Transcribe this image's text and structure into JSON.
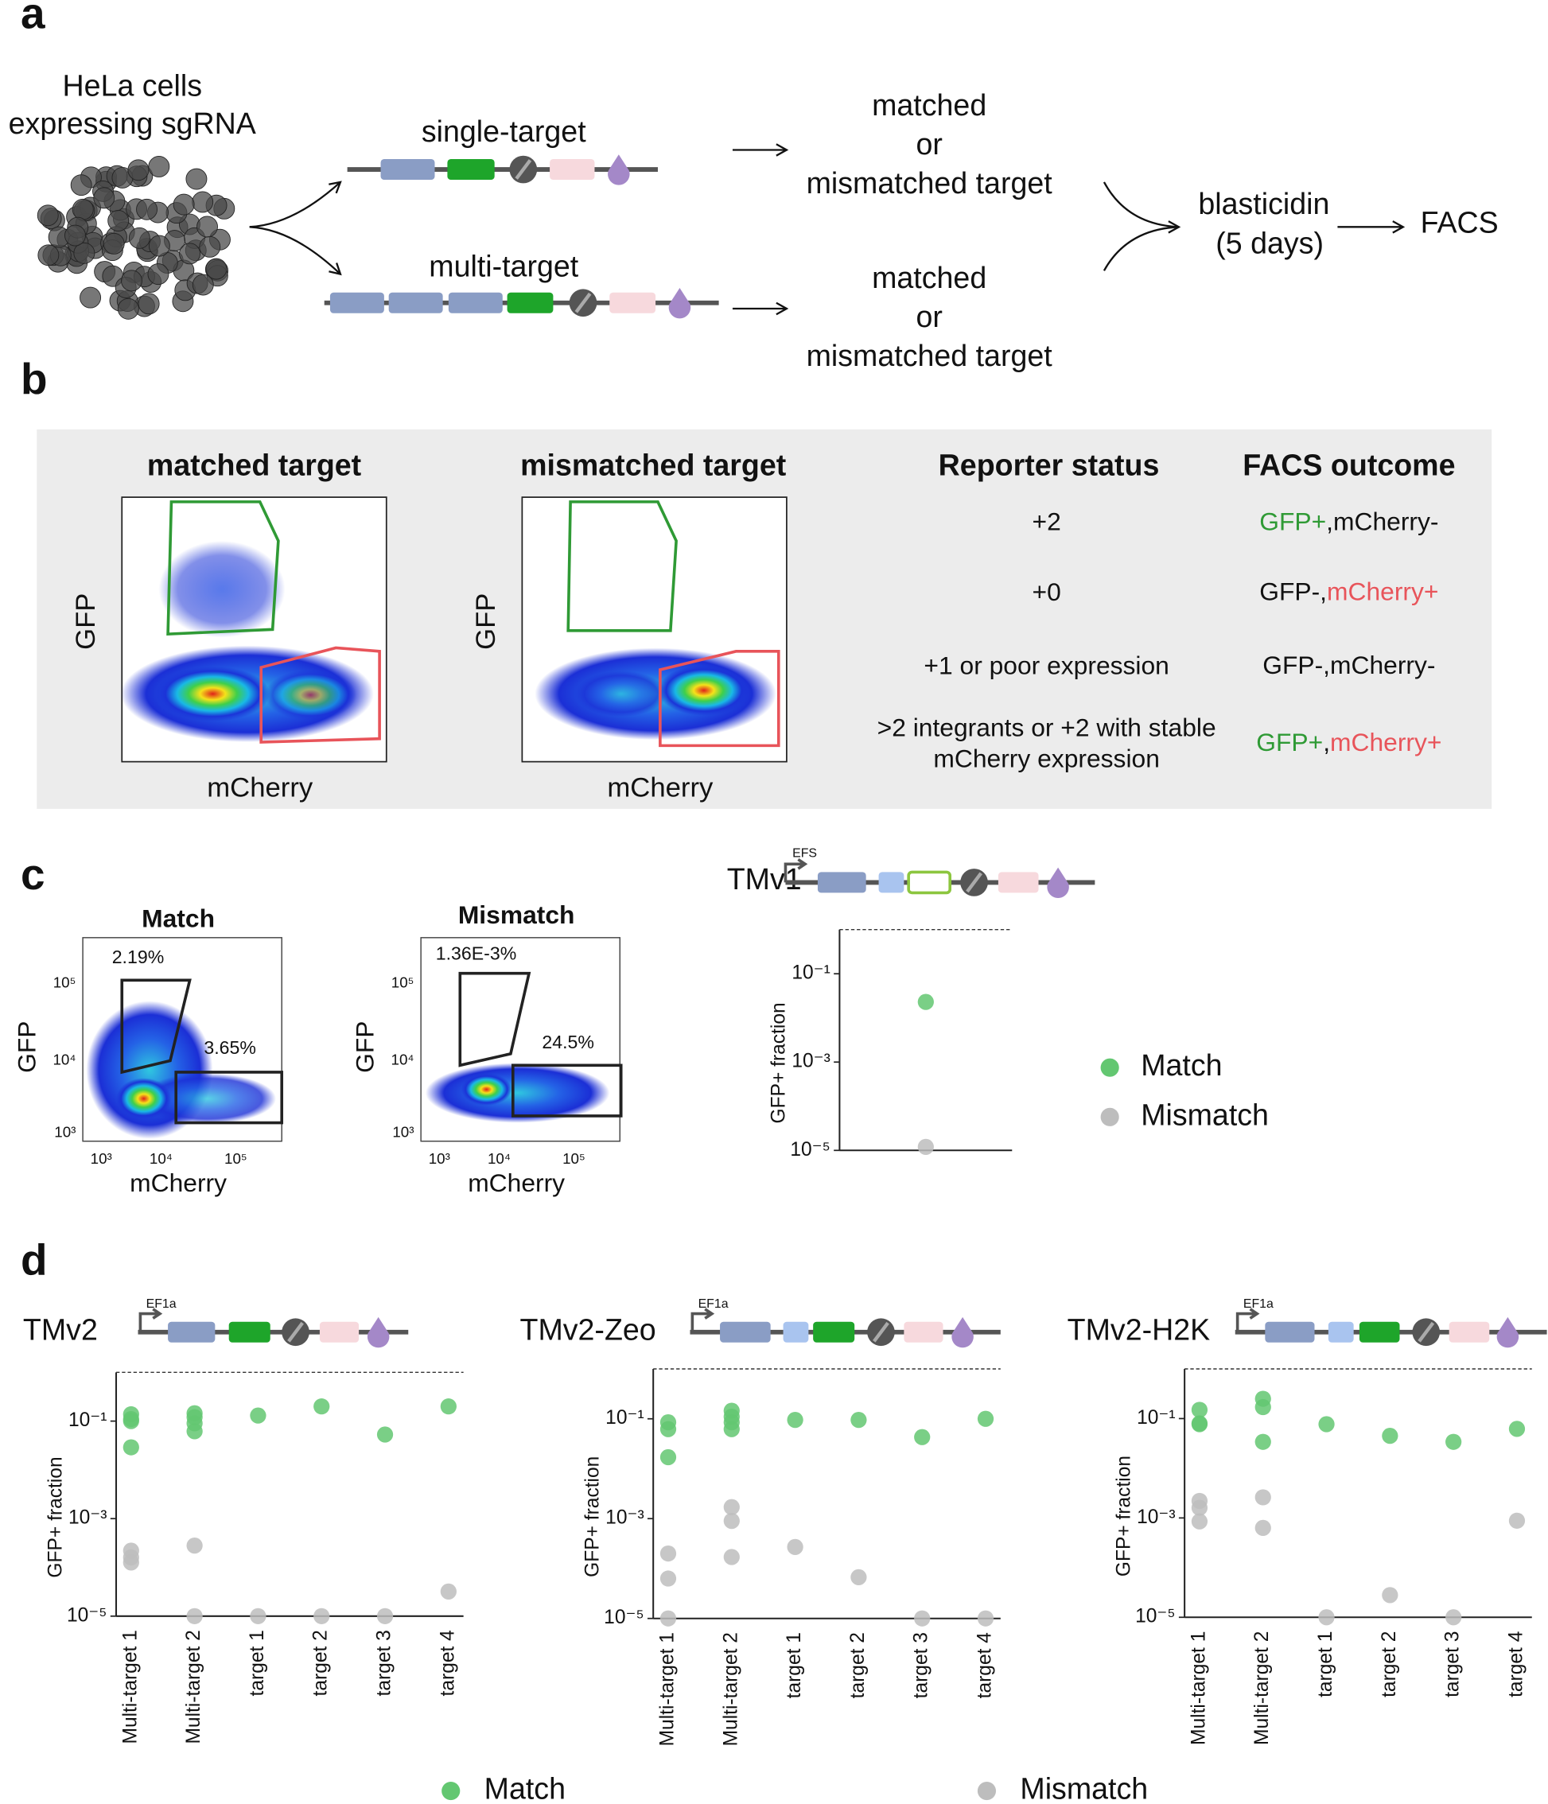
{
  "panel_labels": [
    "a",
    "b",
    "c",
    "d"
  ],
  "panel_a": {
    "cells_label": [
      "HeLa cells",
      "expressing sgRNA"
    ],
    "single": "single-target",
    "multi": "multi-target",
    "outcome": [
      "matched",
      "or",
      "mismatched target"
    ],
    "selection": [
      "blasticidin",
      "(5 days)"
    ],
    "facs": "FACS"
  },
  "panel_b": {
    "plots": [
      {
        "title": "matched target",
        "x_label": "mCherry",
        "y_label": "GFP"
      },
      {
        "title": "mismatched target",
        "x_label": "mCherry",
        "y_label": "GFP"
      }
    ],
    "table": {
      "header": [
        "Reporter status",
        "FACS outcome"
      ],
      "rows": [
        {
          "status": [
            "+2"
          ],
          "outcome": [
            {
              "text": "GFP+",
              "color": "#2f9a35"
            },
            {
              "text": ",mCherry-",
              "color": "#111111"
            }
          ]
        },
        {
          "status": [
            "+0"
          ],
          "outcome": [
            {
              "text": "GFP-,",
              "color": "#111111"
            },
            {
              "text": "mCherry+",
              "color": "#e8545a"
            }
          ]
        },
        {
          "status": [
            "+1 or poor expression"
          ],
          "outcome": [
            {
              "text": "GFP-,mCherry-",
              "color": "#111111"
            }
          ]
        },
        {
          "status": [
            ">2 integrants or +2 with stable",
            "mCherry expression"
          ],
          "outcome": [
            {
              "text": "GFP+",
              "color": "#2f9a35"
            },
            {
              "text": ",",
              "color": "#111111"
            },
            {
              "text": "mCherry+",
              "color": "#e8545a"
            }
          ]
        }
      ]
    }
  },
  "panel_c": {
    "plots": [
      {
        "title": "Match",
        "x_label": "mCherry",
        "y_label": "GFP",
        "gates": [
          "2.19%",
          "3.65%"
        ],
        "ticks": [
          "10³",
          "10⁴",
          "10⁵"
        ]
      },
      {
        "title": "Mismatch",
        "x_label": "mCherry",
        "y_label": "GFP",
        "gates": [
          "1.36E-3%",
          "24.5%"
        ],
        "ticks": [
          "10³",
          "10⁴",
          "10⁵"
        ]
      }
    ],
    "construct": {
      "name": "TMv1",
      "promoter": "EFS"
    }
  },
  "panel_d": {
    "constructs": [
      {
        "name": "TMv2",
        "promoter": "EF1a"
      },
      {
        "name": "TMv2-Zeo",
        "promoter": "EF1a"
      },
      {
        "name": "TMv2-H2K",
        "promoter": "EF1a"
      }
    ]
  },
  "chart_data": [
    {
      "type": "scatter",
      "y_label": "GFP+ fraction",
      "log_y": true,
      "categories": [
        null
      ],
      "ylim": [
        1e-05,
        1
      ],
      "yticks": [
        {
          "value": 1e-05,
          "label": "10⁻⁵"
        },
        {
          "value": 0.001,
          "label": "10⁻³"
        },
        {
          "value": 0.1,
          "label": "10⁻¹"
        }
      ],
      "reference_line": 1,
      "legend": "right",
      "series": [
        {
          "name": "Match",
          "color": "#63c771",
          "x": [
            0
          ],
          "values": [
            0.023
          ]
        },
        {
          "name": "Mismatch",
          "color": "#bdbdbd",
          "x": [
            0
          ],
          "values": [
            1.2e-05
          ]
        }
      ]
    },
    {
      "type": "scatter",
      "y_label": "GFP+ fraction",
      "log_y": true,
      "categories": [
        "Multi-target 1",
        "Multi-target 2",
        "target 1",
        "target 2",
        "target 3",
        "target 4"
      ],
      "ylim": [
        1e-05,
        1
      ],
      "yticks": [
        {
          "value": 1e-05,
          "label": "10⁻⁵"
        },
        {
          "value": 0.001,
          "label": "10⁻³"
        },
        {
          "value": 0.1,
          "label": "10⁻¹"
        }
      ],
      "reference_line": 1,
      "legend": "bottom",
      "series": [
        {
          "name": "Match",
          "color": "#63c771",
          "x": [
            0,
            0,
            0,
            0,
            1,
            1,
            1,
            1,
            2,
            3,
            4,
            5
          ],
          "values": [
            0.138,
            0.11,
            0.1,
            0.029,
            0.145,
            0.12,
            0.09,
            0.062,
            0.13,
            0.2,
            0.053,
            0.2
          ]
        },
        {
          "name": "Mismatch",
          "color": "#bdbdbd",
          "x": [
            0,
            0,
            0,
            1,
            1,
            2,
            3,
            4,
            5
          ],
          "values": [
            0.00022,
            0.00016,
            0.000126,
            0.00028,
            1e-05,
            1e-05,
            1e-05,
            1e-05,
            3.2e-05
          ]
        }
      ]
    },
    {
      "type": "scatter",
      "y_label": "GFP+ fraction",
      "log_y": true,
      "categories": [
        "Multi-target 1",
        "Multi-target 2",
        "target 1",
        "target 2",
        "target 3",
        "target 4"
      ],
      "ylim": [
        1e-05,
        1
      ],
      "yticks": [
        {
          "value": 1e-05,
          "label": "10⁻⁵"
        },
        {
          "value": 0.001,
          "label": "10⁻³"
        },
        {
          "value": 0.1,
          "label": "10⁻¹"
        }
      ],
      "reference_line": 1,
      "series": [
        {
          "color": "#63c771",
          "x": [
            0,
            0,
            0,
            1,
            1,
            1,
            1,
            2,
            3,
            4,
            5
          ],
          "values": [
            0.085,
            0.062,
            0.017,
            0.145,
            0.11,
            0.085,
            0.062,
            0.095,
            0.095,
            0.043,
            0.1
          ]
        },
        {
          "color": "#bdbdbd",
          "x": [
            0,
            0,
            0,
            1,
            1,
            1,
            2,
            3,
            4,
            5
          ],
          "values": [
            0.0002,
            6.3e-05,
            1e-05,
            0.0017,
            0.0009,
            0.00017,
            0.00027,
            6.7e-05,
            1e-05,
            1e-05
          ]
        }
      ]
    },
    {
      "type": "scatter",
      "y_label": "GFP+ fraction",
      "log_y": true,
      "categories": [
        "Multi-target 1",
        "Multi-target 2",
        "target 1",
        "target 2",
        "target 3",
        "target 4"
      ],
      "ylim": [
        1e-05,
        1
      ],
      "yticks": [
        {
          "value": 1e-05,
          "label": "10⁻⁵"
        },
        {
          "value": 0.001,
          "label": "10⁻³"
        },
        {
          "value": 0.1,
          "label": "10⁻¹"
        }
      ],
      "reference_line": 1,
      "series": [
        {
          "color": "#63c771",
          "x": [
            0,
            0,
            0,
            1,
            1,
            1,
            2,
            3,
            4,
            5
          ],
          "values": [
            0.15,
            0.08,
            0.077,
            0.25,
            0.17,
            0.034,
            0.077,
            0.045,
            0.034,
            0.062
          ]
        },
        {
          "color": "#bdbdbd",
          "x": [
            0,
            0,
            0,
            1,
            1,
            2,
            3,
            4,
            5
          ],
          "values": [
            0.0022,
            0.0016,
            0.00085,
            0.0026,
            0.00063,
            1e-05,
            2.8e-05,
            1e-05,
            0.00088
          ]
        }
      ]
    }
  ]
}
